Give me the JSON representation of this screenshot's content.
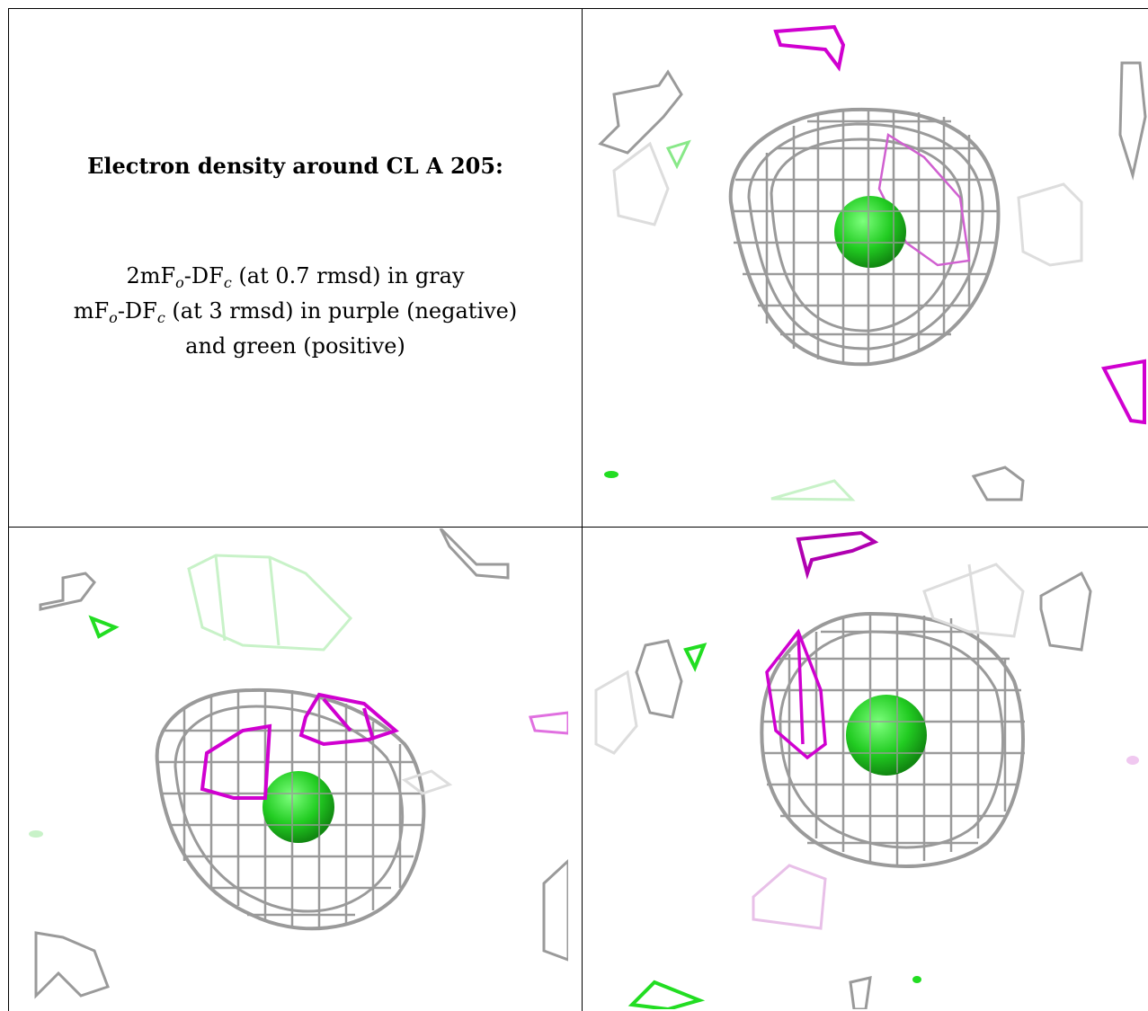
{
  "caption": {
    "heading": "Electron density around CL A 205:",
    "line1_prefix": "2mF",
    "line1_sub1": "o",
    "line1_mid": "-DF",
    "line1_sub2": "c",
    "line1_suffix": " (at 0.7 rmsd) in gray",
    "line2_prefix": "mF",
    "line2_sub1": "o",
    "line2_mid": "-DF",
    "line2_sub2": "c",
    "line2_suffix": " (at 3 rmsd) in purple (negative)",
    "line3": "and green (positive)"
  },
  "colors": {
    "gray_mesh": "#9a9a9a",
    "gray_mesh_light": "#dddddd",
    "purple_negative": "#d000d0",
    "purple_light": "#e8c0e8",
    "green_positive": "#22dd22",
    "green_light": "#c8f2c8",
    "border": "#000000"
  },
  "panels": [
    {
      "name": "view-top-right",
      "atom": "green-sphere"
    },
    {
      "name": "view-bottom-left",
      "atom": "green-sphere"
    },
    {
      "name": "view-bottom-right",
      "atom": "green-sphere"
    }
  ]
}
